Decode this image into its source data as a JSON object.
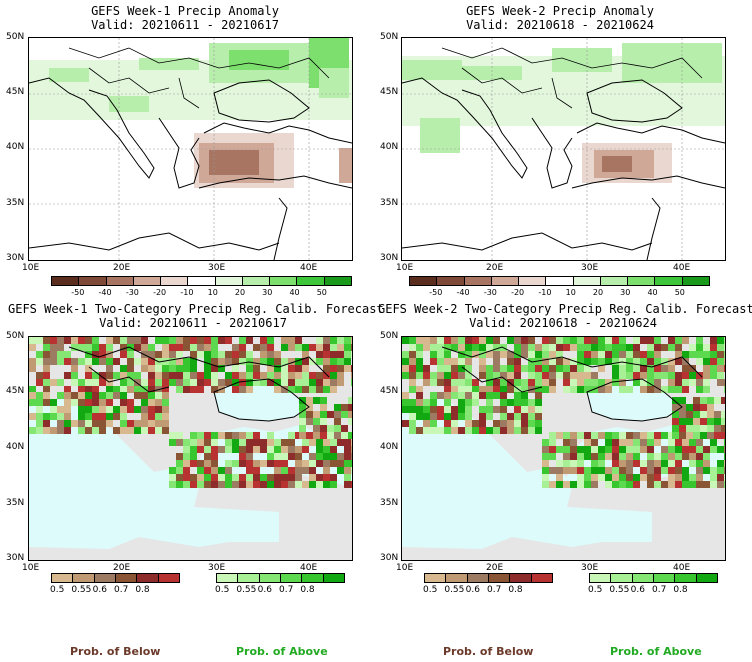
{
  "panels": [
    {
      "title": "GEFS Week-1 Precip Anomaly",
      "valid": "Valid: 20210611 - 20210617"
    },
    {
      "title": "GEFS Week-2 Precip Anomaly",
      "valid": "Valid: 20210618 - 20210624"
    },
    {
      "title": "GEFS Week-1 Two-Category Precip Reg. Calib. Forecast",
      "valid": "Valid: 20210611 - 20210617"
    },
    {
      "title": "GEFS Week-2 Two-Category Precip Reg. Calib. Forecast",
      "valid": "Valid: 20210618 - 20210624"
    }
  ],
  "axes": {
    "lat_labels": [
      "50N",
      "45N",
      "40N",
      "35N",
      "30N"
    ],
    "lon_labels": [
      "10E",
      "20E",
      "30E",
      "40E"
    ]
  },
  "anomaly_colorbar": {
    "labels": [
      "-50",
      "-40",
      "-30",
      "-20",
      "-10",
      "10",
      "20",
      "30",
      "40",
      "50"
    ],
    "colors": [
      "#5a2d1e",
      "#7e4a37",
      "#a87563",
      "#cfa898",
      "#ead8d0",
      "#ffffff",
      "#e2f7dc",
      "#b7eeac",
      "#7ddf6e",
      "#3fc53a",
      "#1a9a1a"
    ]
  },
  "below_colorbar": {
    "labels": [
      "0.5",
      "0.55",
      "0.6",
      "0.7",
      "0.8"
    ],
    "colors": [
      "#d8b98f",
      "#bf9a72",
      "#9d7b63",
      "#8a5535",
      "#8e2b2b",
      "#b83232"
    ]
  },
  "above_colorbar": {
    "labels": [
      "0.5",
      "0.55",
      "0.6",
      "0.7",
      "0.8"
    ],
    "colors": [
      "#c9f7b8",
      "#a7f096",
      "#85e673",
      "#5cd94e",
      "#37c62d",
      "#12a812"
    ]
  },
  "legend": {
    "below": "Prob. of Below",
    "above": "Prob. of Above",
    "below_color": "#6b3a2a",
    "above_color": "#22aa22"
  },
  "colors": {
    "sea": "#ddfbfb",
    "land_missing": "#e6e6e6"
  }
}
